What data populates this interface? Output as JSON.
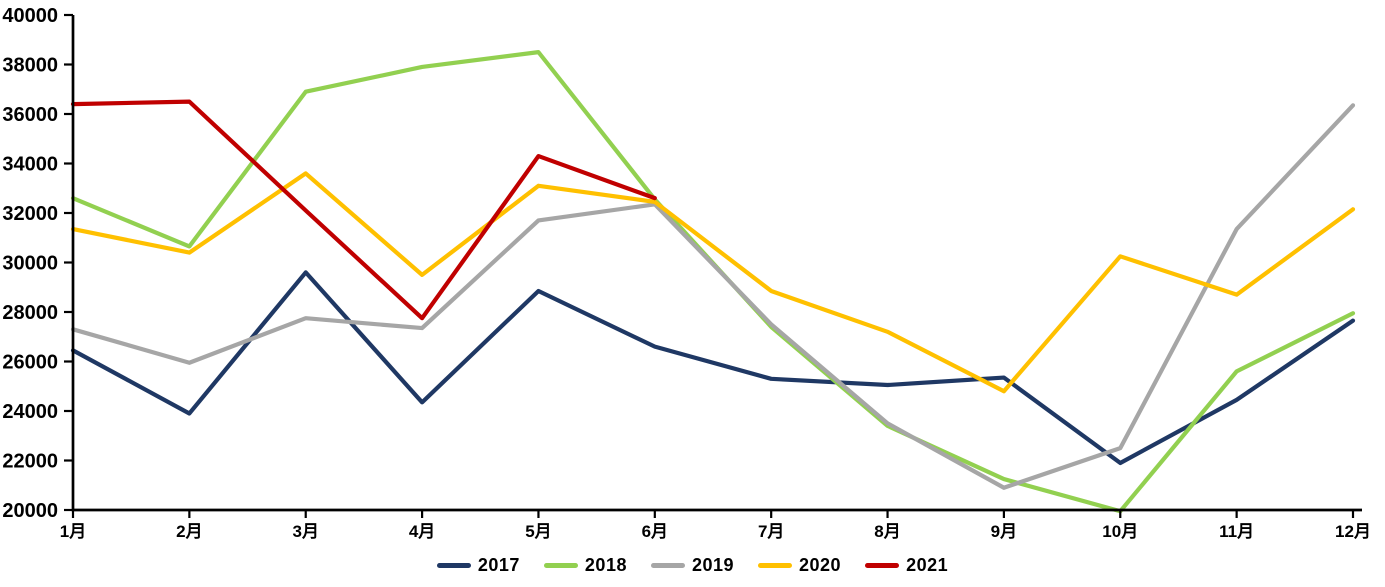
{
  "chart_data": {
    "type": "line",
    "title": "",
    "xlabel": "",
    "ylabel": "",
    "categories": [
      "1月",
      "2月",
      "3月",
      "4月",
      "5月",
      "6月",
      "7月",
      "8月",
      "9月",
      "10月",
      "11月",
      "12月"
    ],
    "series": [
      {
        "name": "2017",
        "color": "#1F3864",
        "values": [
          26450,
          23900,
          29600,
          24350,
          28850,
          26600,
          25300,
          25050,
          25350,
          21900,
          24450,
          27650
        ]
      },
      {
        "name": "2018",
        "color": "#92D050",
        "values": [
          32600,
          30650,
          36900,
          37900,
          38500,
          32550,
          27400,
          23400,
          21250,
          19950,
          25600,
          27950
        ]
      },
      {
        "name": "2019",
        "color": "#A6A6A6",
        "values": [
          27300,
          25950,
          27750,
          27350,
          31700,
          32350,
          27500,
          23500,
          20900,
          22500,
          31350,
          36350
        ]
      },
      {
        "name": "2020",
        "color": "#FFC000",
        "values": [
          31350,
          30400,
          33600,
          29500,
          33100,
          32450,
          28850,
          27200,
          24800,
          30250,
          28700,
          32150
        ]
      },
      {
        "name": "2021",
        "color": "#C00000",
        "values": [
          36400,
          36500,
          32100,
          27750,
          34300,
          32600,
          null,
          null,
          null,
          null,
          null,
          null
        ]
      }
    ],
    "ylim": [
      20000,
      40000
    ],
    "ytick_step": 2000,
    "ytick_labels": [
      "20000",
      "22000",
      "24000",
      "26000",
      "28000",
      "30000",
      "32000",
      "34000",
      "36000",
      "38000",
      "40000"
    ],
    "grid": false,
    "legend_position": "bottom",
    "axis_color": "#000000"
  }
}
